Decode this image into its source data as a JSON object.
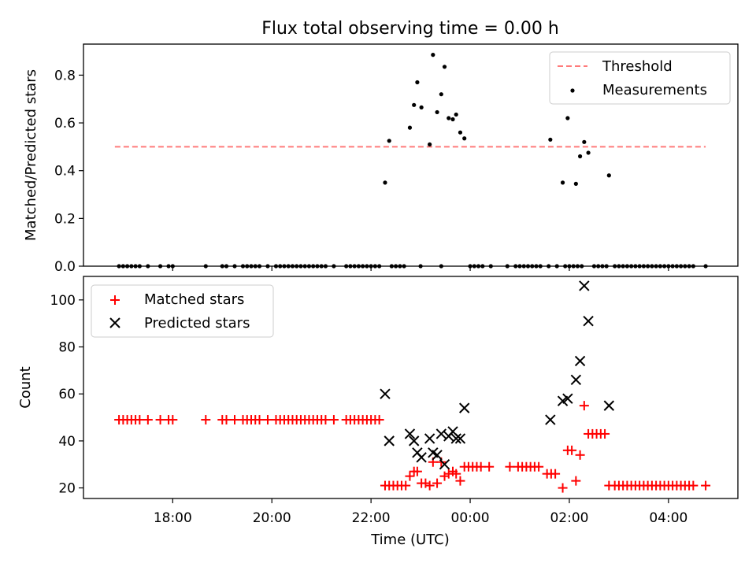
{
  "chart_data": [
    {
      "type": "scatter",
      "title": "Flux total observing time = 0.00 h",
      "xlabel": "",
      "ylabel": "Matched/Predicted stars",
      "ylim": [
        0,
        0.93
      ],
      "yticks": [
        "0.0",
        "0.2",
        "0.4",
        "0.6",
        "0.8"
      ],
      "ytick_values": [
        0,
        0.2,
        0.4,
        0.6,
        0.8
      ],
      "xlim_hours": [
        16.2,
        29.4
      ],
      "grid": false,
      "legend_position": "upper right",
      "legend": [
        "Threshold",
        "Measurements"
      ],
      "threshold": {
        "name": "Threshold",
        "value": 0.5,
        "x_start": "16:50",
        "x_end": "04:45",
        "color": "#ff7b7b"
      },
      "series": [
        {
          "name": "Measurements",
          "color": "#000000",
          "points": [
            [
              "16:55",
              0
            ],
            [
              "17:00",
              0
            ],
            [
              "17:05",
              0
            ],
            [
              "17:10",
              0
            ],
            [
              "17:15",
              0
            ],
            [
              "17:20",
              0
            ],
            [
              "17:30",
              0
            ],
            [
              "17:45",
              0
            ],
            [
              "17:55",
              0
            ],
            [
              "18:00",
              0
            ],
            [
              "18:40",
              0
            ],
            [
              "19:00",
              0
            ],
            [
              "19:05",
              0
            ],
            [
              "19:15",
              0
            ],
            [
              "19:25",
              0
            ],
            [
              "19:30",
              0
            ],
            [
              "19:35",
              0
            ],
            [
              "19:40",
              0
            ],
            [
              "19:45",
              0
            ],
            [
              "19:55",
              0
            ],
            [
              "20:05",
              0
            ],
            [
              "20:10",
              0
            ],
            [
              "20:15",
              0
            ],
            [
              "20:20",
              0
            ],
            [
              "20:25",
              0
            ],
            [
              "20:30",
              0
            ],
            [
              "20:35",
              0
            ],
            [
              "20:40",
              0
            ],
            [
              "20:45",
              0
            ],
            [
              "20:50",
              0
            ],
            [
              "20:55",
              0
            ],
            [
              "21:00",
              0
            ],
            [
              "21:05",
              0
            ],
            [
              "21:15",
              0
            ],
            [
              "21:30",
              0
            ],
            [
              "21:35",
              0
            ],
            [
              "21:40",
              0
            ],
            [
              "21:45",
              0
            ],
            [
              "21:50",
              0
            ],
            [
              "21:55",
              0
            ],
            [
              "22:00",
              0
            ],
            [
              "22:05",
              0
            ],
            [
              "22:10",
              0
            ],
            [
              "22:25",
              0
            ],
            [
              "22:30",
              0
            ],
            [
              "22:35",
              0
            ],
            [
              "22:40",
              0
            ],
            [
              "23:00",
              0
            ],
            [
              "23:25",
              0
            ],
            [
              "22:17",
              0.35
            ],
            [
              "22:22",
              0.525
            ],
            [
              "22:47",
              0.58
            ],
            [
              "22:52",
              0.675
            ],
            [
              "22:56",
              0.77
            ],
            [
              "23:01",
              0.665
            ],
            [
              "23:11",
              0.51
            ],
            [
              "23:15",
              0.885
            ],
            [
              "23:20",
              0.645
            ],
            [
              "23:25",
              0.72
            ],
            [
              "23:29",
              0.835
            ],
            [
              "23:34",
              0.62
            ],
            [
              "23:39",
              0.615
            ],
            [
              "23:43",
              0.635
            ],
            [
              "23:48",
              0.56
            ],
            [
              "23:53",
              0.535
            ],
            [
              "00:00",
              0
            ],
            [
              "00:05",
              0
            ],
            [
              "00:10",
              0
            ],
            [
              "00:15",
              0
            ],
            [
              "00:25",
              0
            ],
            [
              "00:45",
              0
            ],
            [
              "00:55",
              0
            ],
            [
              "01:00",
              0
            ],
            [
              "01:05",
              0
            ],
            [
              "01:10",
              0
            ],
            [
              "01:15",
              0
            ],
            [
              "01:20",
              0
            ],
            [
              "01:25",
              0
            ],
            [
              "01:35",
              0
            ],
            [
              "01:45",
              0
            ],
            [
              "01:55",
              0
            ],
            [
              "02:00",
              0
            ],
            [
              "02:05",
              0
            ],
            [
              "02:10",
              0
            ],
            [
              "02:15",
              0
            ],
            [
              "01:37",
              0.53
            ],
            [
              "01:52",
              0.35
            ],
            [
              "01:58",
              0.62
            ],
            [
              "02:08",
              0.345
            ],
            [
              "02:13",
              0.46
            ],
            [
              "02:18",
              0.52
            ],
            [
              "02:23",
              0.475
            ],
            [
              "02:48",
              0.38
            ],
            [
              "02:30",
              0
            ],
            [
              "02:35",
              0
            ],
            [
              "02:40",
              0
            ],
            [
              "02:45",
              0
            ],
            [
              "02:55",
              0
            ],
            [
              "03:00",
              0
            ],
            [
              "03:05",
              0
            ],
            [
              "03:10",
              0
            ],
            [
              "03:15",
              0
            ],
            [
              "03:20",
              0
            ],
            [
              "03:25",
              0
            ],
            [
              "03:30",
              0
            ],
            [
              "03:35",
              0
            ],
            [
              "03:40",
              0
            ],
            [
              "03:45",
              0
            ],
            [
              "03:50",
              0
            ],
            [
              "03:55",
              0
            ],
            [
              "04:00",
              0
            ],
            [
              "04:05",
              0
            ],
            [
              "04:10",
              0
            ],
            [
              "04:15",
              0
            ],
            [
              "04:20",
              0
            ],
            [
              "04:25",
              0
            ],
            [
              "04:30",
              0
            ],
            [
              "04:45",
              0
            ]
          ]
        }
      ]
    },
    {
      "type": "scatter",
      "title": "",
      "xlabel": "Time (UTC)",
      "ylabel": "Count",
      "ylim": [
        15.5,
        110
      ],
      "yticks": [
        "20",
        "40",
        "60",
        "80",
        "100"
      ],
      "ytick_values": [
        20,
        40,
        60,
        80,
        100
      ],
      "xlim_hours": [
        16.2,
        29.4
      ],
      "xticks": [
        "18:00",
        "20:00",
        "22:00",
        "00:00",
        "02:00",
        "04:00"
      ],
      "xtick_hours": [
        18,
        20,
        22,
        24,
        26,
        28
      ],
      "grid": false,
      "legend_position": "upper left",
      "legend": [
        "Matched stars",
        "Predicted stars"
      ],
      "series": [
        {
          "name": "Matched stars",
          "marker": "+",
          "color": "#ff0000",
          "points": [
            [
              "16:55",
              49
            ],
            [
              "17:00",
              49
            ],
            [
              "17:05",
              49
            ],
            [
              "17:10",
              49
            ],
            [
              "17:15",
              49
            ],
            [
              "17:20",
              49
            ],
            [
              "17:30",
              49
            ],
            [
              "17:45",
              49
            ],
            [
              "17:55",
              49
            ],
            [
              "18:00",
              49
            ],
            [
              "18:40",
              49
            ],
            [
              "19:00",
              49
            ],
            [
              "19:05",
              49
            ],
            [
              "19:15",
              49
            ],
            [
              "19:25",
              49
            ],
            [
              "19:30",
              49
            ],
            [
              "19:35",
              49
            ],
            [
              "19:40",
              49
            ],
            [
              "19:45",
              49
            ],
            [
              "19:55",
              49
            ],
            [
              "20:05",
              49
            ],
            [
              "20:10",
              49
            ],
            [
              "20:15",
              49
            ],
            [
              "20:20",
              49
            ],
            [
              "20:25",
              49
            ],
            [
              "20:30",
              49
            ],
            [
              "20:35",
              49
            ],
            [
              "20:40",
              49
            ],
            [
              "20:45",
              49
            ],
            [
              "20:50",
              49
            ],
            [
              "20:55",
              49
            ],
            [
              "21:00",
              49
            ],
            [
              "21:05",
              49
            ],
            [
              "21:15",
              49
            ],
            [
              "21:30",
              49
            ],
            [
              "21:35",
              49
            ],
            [
              "21:40",
              49
            ],
            [
              "21:45",
              49
            ],
            [
              "21:50",
              49
            ],
            [
              "21:55",
              49
            ],
            [
              "22:00",
              49
            ],
            [
              "22:05",
              49
            ],
            [
              "22:10",
              49
            ],
            [
              "22:17",
              21
            ],
            [
              "22:22",
              21
            ],
            [
              "22:27",
              21
            ],
            [
              "22:32",
              21
            ],
            [
              "22:37",
              21
            ],
            [
              "22:42",
              21
            ],
            [
              "22:47",
              25
            ],
            [
              "22:52",
              27
            ],
            [
              "22:56",
              27
            ],
            [
              "23:01",
              22
            ],
            [
              "23:06",
              22
            ],
            [
              "23:11",
              21
            ],
            [
              "23:15",
              31
            ],
            [
              "23:20",
              22
            ],
            [
              "23:25",
              31
            ],
            [
              "23:29",
              25
            ],
            [
              "23:34",
              26
            ],
            [
              "23:39",
              27
            ],
            [
              "23:43",
              26
            ],
            [
              "23:48",
              23
            ],
            [
              "23:53",
              29
            ],
            [
              "23:58",
              29
            ],
            [
              "00:03",
              29
            ],
            [
              "00:08",
              29
            ],
            [
              "00:13",
              29
            ],
            [
              "00:23",
              29
            ],
            [
              "00:48",
              29
            ],
            [
              "00:58",
              29
            ],
            [
              "01:03",
              29
            ],
            [
              "01:08",
              29
            ],
            [
              "01:13",
              29
            ],
            [
              "01:18",
              29
            ],
            [
              "01:23",
              29
            ],
            [
              "01:33",
              26
            ],
            [
              "01:38",
              26
            ],
            [
              "01:43",
              26
            ],
            [
              "01:52",
              20
            ],
            [
              "01:58",
              36
            ],
            [
              "02:03",
              36
            ],
            [
              "02:08",
              23
            ],
            [
              "02:13",
              34
            ],
            [
              "02:18",
              55
            ],
            [
              "02:23",
              43
            ],
            [
              "02:28",
              43
            ],
            [
              "02:33",
              43
            ],
            [
              "02:38",
              43
            ],
            [
              "02:43",
              43
            ],
            [
              "02:48",
              21
            ],
            [
              "02:55",
              21
            ],
            [
              "03:00",
              21
            ],
            [
              "03:05",
              21
            ],
            [
              "03:10",
              21
            ],
            [
              "03:15",
              21
            ],
            [
              "03:20",
              21
            ],
            [
              "03:25",
              21
            ],
            [
              "03:30",
              21
            ],
            [
              "03:35",
              21
            ],
            [
              "03:40",
              21
            ],
            [
              "03:45",
              21
            ],
            [
              "03:50",
              21
            ],
            [
              "03:55",
              21
            ],
            [
              "04:00",
              21
            ],
            [
              "04:05",
              21
            ],
            [
              "04:10",
              21
            ],
            [
              "04:15",
              21
            ],
            [
              "04:20",
              21
            ],
            [
              "04:25",
              21
            ],
            [
              "04:30",
              21
            ],
            [
              "04:45",
              21
            ]
          ]
        },
        {
          "name": "Predicted stars",
          "marker": "x",
          "color": "#000000",
          "points": [
            [
              "22:17",
              60
            ],
            [
              "22:22",
              40
            ],
            [
              "22:47",
              43
            ],
            [
              "22:52",
              40
            ],
            [
              "22:56",
              35
            ],
            [
              "23:01",
              33
            ],
            [
              "23:11",
              41
            ],
            [
              "23:15",
              35
            ],
            [
              "23:20",
              34
            ],
            [
              "23:25",
              43
            ],
            [
              "23:29",
              30
            ],
            [
              "23:34",
              42
            ],
            [
              "23:39",
              44
            ],
            [
              "23:43",
              41
            ],
            [
              "23:48",
              41
            ],
            [
              "23:53",
              54
            ],
            [
              "01:37",
              49
            ],
            [
              "01:52",
              57
            ],
            [
              "01:58",
              58
            ],
            [
              "02:08",
              66
            ],
            [
              "02:13",
              74
            ],
            [
              "02:18",
              106
            ],
            [
              "02:23",
              91
            ],
            [
              "02:48",
              55
            ]
          ]
        }
      ]
    }
  ]
}
